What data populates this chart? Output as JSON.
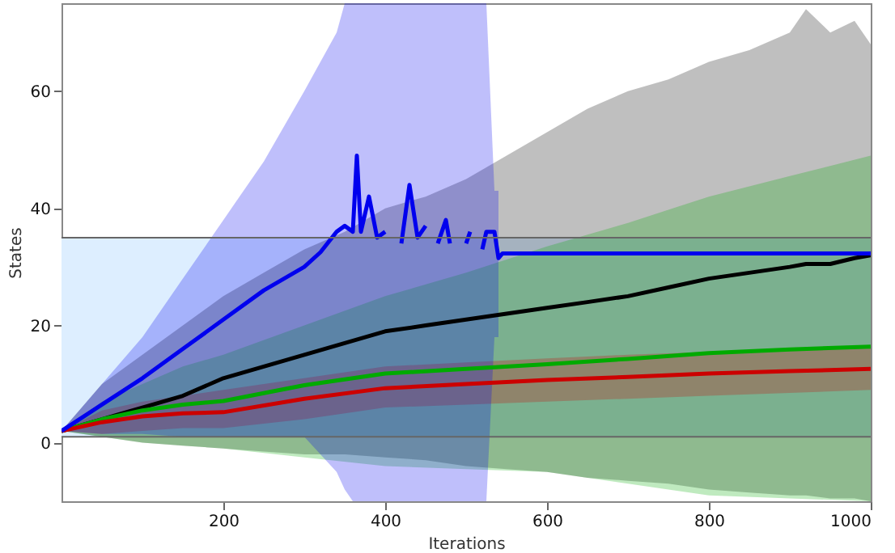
{
  "chart_data": {
    "type": "line",
    "xlabel": "Iterations",
    "ylabel": "States",
    "xlim": [
      0,
      1000
    ],
    "ylim": [
      -10,
      75
    ],
    "xticks": [
      200,
      400,
      600,
      800,
      1000
    ],
    "yticks": [
      0,
      20,
      40,
      60
    ],
    "grid": false,
    "bands": [
      {
        "axis": "y",
        "from": 1,
        "to": 35,
        "color": "#ddeeff"
      }
    ],
    "ref_lines": [
      {
        "axis": "y",
        "value": 35,
        "color": "#666666"
      },
      {
        "axis": "y",
        "value": 1,
        "color": "#666666"
      }
    ],
    "series": [
      {
        "color": "#000000",
        "x": [
          0,
          50,
          100,
          150,
          200,
          250,
          300,
          350,
          400,
          450,
          500,
          550,
          600,
          650,
          700,
          750,
          800,
          850,
          900,
          920,
          950,
          980,
          1000
        ],
        "values": [
          2,
          4,
          6,
          8,
          11,
          13,
          15,
          17,
          19,
          20,
          21,
          22,
          23,
          24,
          25,
          26.5,
          28,
          29,
          30,
          30.5,
          30.5,
          31.5,
          32
        ],
        "lower": [
          2,
          1,
          0,
          -0.5,
          -1,
          -1.5,
          -2,
          -2,
          -2.5,
          -3,
          -4,
          -4.5,
          -5,
          -6,
          -6.5,
          -7,
          -8,
          -8.5,
          -9,
          -9,
          -9.5,
          -9.5,
          -10
        ],
        "upper": [
          2,
          10,
          15,
          20,
          25,
          29,
          33,
          36,
          40,
          42,
          45,
          49,
          53,
          57,
          60,
          62,
          65,
          67,
          70,
          74,
          70,
          72,
          68
        ]
      },
      {
        "color": "#00aa00",
        "x": [
          0,
          50,
          100,
          150,
          200,
          300,
          400,
          500,
          600,
          700,
          800,
          900,
          1000
        ],
        "values": [
          2,
          4,
          5.5,
          6.5,
          7.1,
          9.8,
          11.8,
          12.6,
          13.4,
          14.3,
          15.3,
          15.9,
          16.4
        ],
        "lower": [
          2,
          1,
          0,
          -0.5,
          -1,
          -2.5,
          -4,
          -4.5,
          -5,
          -7,
          -9,
          -9.5,
          -10
        ],
        "upper": [
          2,
          7,
          10,
          13,
          15,
          20,
          25,
          29,
          33.5,
          37.5,
          42,
          45.5,
          49
        ]
      },
      {
        "color": "#cc0000",
        "x": [
          0,
          50,
          100,
          150,
          200,
          300,
          400,
          500,
          600,
          700,
          800,
          900,
          1000
        ],
        "values": [
          2,
          3.5,
          4.5,
          5,
          5.2,
          7.5,
          9.3,
          10,
          10.7,
          11.2,
          11.8,
          12.2,
          12.6
        ],
        "lower": [
          2,
          1.5,
          2,
          2.5,
          2.5,
          4,
          6,
          6.5,
          7,
          7.5,
          8,
          8.5,
          9
        ],
        "upper": [
          2,
          5.5,
          7,
          8,
          9,
          11,
          13,
          13.7,
          14.4,
          15,
          15.5,
          16,
          16.5
        ]
      },
      {
        "color": "#0000ee",
        "x": [
          0,
          50,
          100,
          150,
          200,
          250,
          300,
          320,
          340,
          350,
          360,
          365,
          370,
          380,
          390,
          400,
          405,
          415,
          420,
          430,
          440,
          450,
          460,
          465,
          475,
          480,
          490,
          495,
          500,
          505,
          510,
          515,
          520,
          525,
          535,
          540,
          545,
          1000
        ],
        "values": [
          2,
          6.5,
          11,
          16,
          21,
          26,
          30,
          32.5,
          36,
          37,
          36,
          49,
          36,
          42,
          35,
          36,
          null,
          null,
          34,
          44,
          35,
          37,
          null,
          34,
          38,
          34,
          null,
          null,
          34,
          36,
          null,
          null,
          33,
          36,
          36,
          31.5,
          32.3,
          32.3
        ],
        "lower": [
          2,
          1.5,
          1.5,
          1,
          1,
          1,
          1,
          -2,
          -5,
          -8,
          -10,
          -10,
          -10,
          -10,
          -10,
          -10,
          -10,
          -10,
          -10,
          -10,
          -10,
          -10,
          -10,
          -10,
          -10,
          -10,
          -10,
          -10,
          -10,
          -10,
          -10,
          -10,
          -10,
          -10,
          18,
          18,
          null,
          null
        ],
        "upper": [
          2,
          10,
          18,
          28,
          38,
          48,
          60,
          65,
          70,
          75,
          75,
          75,
          75,
          75,
          75,
          75,
          75,
          75,
          75,
          75,
          75,
          75,
          75,
          75,
          75,
          75,
          75,
          75,
          75,
          75,
          75,
          75,
          75,
          75,
          43,
          43,
          null,
          null
        ]
      }
    ]
  }
}
